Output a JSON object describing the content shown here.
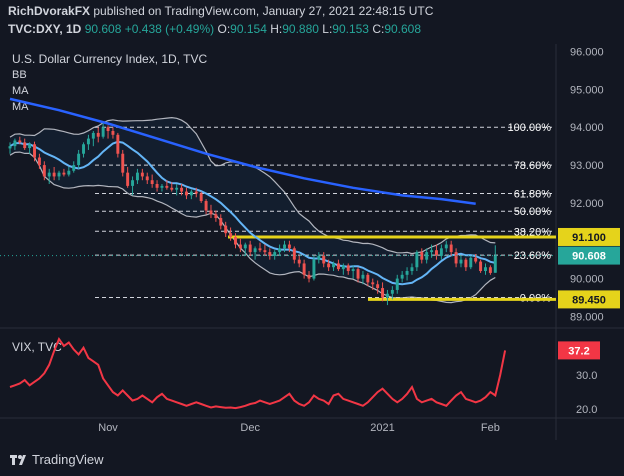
{
  "header": {
    "author": "RichDvorakFX",
    "published_text": "published on TradingView.com, January 27, 2021 22:48:15 UTC",
    "symbol": "TVC:DXY, 1D",
    "last": "90.608",
    "change": "+0.438 (+0.49%)",
    "o_label": "O:",
    "o_val": "90.154",
    "h_label": "H:",
    "h_val": "90.880",
    "l_label": "L:",
    "l_val": "90.153",
    "c_label": "C:",
    "c_val": "90.608"
  },
  "footer": {
    "brand": "TradingView"
  },
  "colors": {
    "background": "#131722",
    "up": "#26a69a",
    "down": "#ef5350",
    "ma_long": "#2962ff",
    "ma_short": "#64b5f6",
    "bollinger": "#b2b5be",
    "highlight": "#e5d31b",
    "vix": "#f23645"
  },
  "chart_data": [
    {
      "type": "candlestick",
      "title": "U.S. Dollar Currency Index, 1D, TVC",
      "indicator_labels": [
        "BB",
        "MA",
        "MA"
      ],
      "ylim": [
        88.8,
        96.2
      ],
      "y_ticks": [
        89.0,
        90.0,
        91.0,
        92.0,
        93.0,
        94.0,
        95.0,
        96.0
      ],
      "y_tick_labels": [
        "89.000",
        "90.000",
        "91.000",
        "92.000",
        "93.000",
        "94.000",
        "95.000",
        "96.000"
      ],
      "x_tick_labels": [
        {
          "label": "Nov",
          "index": 20
        },
        {
          "label": "Dec",
          "index": 49
        },
        {
          "label": "2021",
          "index": 76
        },
        {
          "label": "Feb",
          "index": 98
        }
      ],
      "x_count": 102,
      "candles": [
        [
          93.44,
          93.6,
          93.3,
          93.5
        ],
        [
          93.5,
          93.7,
          93.4,
          93.65
        ],
        [
          93.65,
          93.75,
          93.55,
          93.6
        ],
        [
          93.6,
          93.7,
          93.4,
          93.45
        ],
        [
          93.45,
          93.6,
          93.3,
          93.55
        ],
        [
          93.55,
          93.62,
          93.1,
          93.2
        ],
        [
          93.2,
          93.3,
          92.9,
          93.0
        ],
        [
          93.0,
          93.1,
          92.6,
          92.7
        ],
        [
          92.7,
          92.9,
          92.5,
          92.8
        ],
        [
          92.8,
          92.95,
          92.6,
          92.7
        ],
        [
          92.7,
          92.85,
          92.6,
          92.8
        ],
        [
          92.8,
          92.9,
          92.7,
          92.75
        ],
        [
          92.75,
          92.95,
          92.7,
          92.85
        ],
        [
          92.85,
          93.1,
          92.8,
          93.0
        ],
        [
          93.0,
          93.4,
          92.9,
          93.3
        ],
        [
          93.3,
          93.6,
          93.2,
          93.55
        ],
        [
          93.55,
          93.8,
          93.4,
          93.7
        ],
        [
          93.7,
          93.9,
          93.5,
          93.85
        ],
        [
          93.85,
          94.0,
          93.6,
          93.75
        ],
        [
          93.75,
          94.1,
          93.7,
          94.0
        ],
        [
          94.0,
          94.05,
          93.7,
          93.9
        ],
        [
          93.9,
          94.0,
          93.7,
          93.8
        ],
        [
          93.8,
          93.85,
          93.2,
          93.3
        ],
        [
          93.3,
          93.4,
          92.7,
          92.8
        ],
        [
          92.8,
          92.95,
          92.4,
          92.45
        ],
        [
          92.45,
          92.7,
          92.2,
          92.6
        ],
        [
          92.6,
          92.9,
          92.5,
          92.8
        ],
        [
          92.8,
          92.9,
          92.6,
          92.7
        ],
        [
          92.7,
          92.8,
          92.5,
          92.6
        ],
        [
          92.6,
          92.75,
          92.4,
          92.5
        ],
        [
          92.5,
          92.6,
          92.3,
          92.4
        ],
        [
          92.4,
          92.5,
          92.3,
          92.45
        ],
        [
          92.45,
          92.6,
          92.35,
          92.4
        ],
        [
          92.4,
          92.55,
          92.3,
          92.35
        ],
        [
          92.35,
          92.5,
          92.2,
          92.4
        ],
        [
          92.4,
          92.5,
          92.2,
          92.3
        ],
        [
          92.3,
          92.4,
          92.1,
          92.2
        ],
        [
          92.2,
          92.35,
          92.1,
          92.3
        ],
        [
          92.3,
          92.4,
          92.15,
          92.25
        ],
        [
          92.25,
          92.3,
          92.0,
          92.05
        ],
        [
          92.05,
          92.1,
          91.7,
          91.8
        ],
        [
          91.8,
          91.95,
          91.6,
          91.7
        ],
        [
          91.7,
          91.8,
          91.5,
          91.6
        ],
        [
          91.6,
          91.7,
          91.3,
          91.4
        ],
        [
          91.4,
          91.5,
          91.1,
          91.2
        ],
        [
          91.2,
          91.35,
          91.0,
          91.1
        ],
        [
          91.1,
          91.2,
          90.8,
          90.9
        ],
        [
          90.9,
          91.05,
          90.7,
          90.8
        ],
        [
          90.8,
          90.95,
          90.6,
          90.9
        ],
        [
          90.9,
          91.0,
          90.6,
          90.7
        ],
        [
          90.7,
          90.85,
          90.5,
          90.8
        ],
        [
          90.8,
          90.95,
          90.7,
          90.75
        ],
        [
          90.75,
          90.9,
          90.6,
          90.7
        ],
        [
          90.7,
          90.8,
          90.5,
          90.6
        ],
        [
          90.6,
          90.75,
          90.5,
          90.7
        ],
        [
          90.7,
          90.9,
          90.6,
          90.8
        ],
        [
          90.8,
          91.0,
          90.7,
          90.9
        ],
        [
          90.9,
          91.0,
          90.7,
          90.8
        ],
        [
          90.8,
          90.85,
          90.4,
          90.5
        ],
        [
          90.5,
          90.6,
          90.3,
          90.4
        ],
        [
          90.4,
          90.5,
          90.0,
          90.1
        ],
        [
          90.1,
          90.2,
          89.9,
          90.0
        ],
        [
          90.0,
          90.6,
          89.95,
          90.5
        ],
        [
          90.5,
          90.7,
          90.4,
          90.6
        ],
        [
          90.6,
          90.7,
          90.3,
          90.4
        ],
        [
          90.4,
          90.5,
          90.2,
          90.3
        ],
        [
          90.3,
          90.45,
          90.2,
          90.4
        ],
        [
          90.4,
          90.5,
          90.2,
          90.25
        ],
        [
          90.25,
          90.4,
          90.1,
          90.35
        ],
        [
          90.35,
          90.4,
          90.1,
          90.2
        ],
        [
          90.2,
          90.35,
          90.0,
          90.25
        ],
        [
          90.25,
          90.3,
          89.9,
          90.0
        ],
        [
          90.0,
          90.2,
          89.85,
          90.1
        ],
        [
          90.1,
          90.15,
          89.8,
          89.9
        ],
        [
          89.9,
          90.0,
          89.7,
          89.85
        ],
        [
          89.85,
          89.95,
          89.6,
          89.75
        ],
        [
          89.75,
          89.9,
          89.4,
          89.5
        ],
        [
          89.5,
          89.7,
          89.3,
          89.6
        ],
        [
          89.6,
          89.8,
          89.45,
          89.7
        ],
        [
          89.7,
          90.1,
          89.6,
          90.0
        ],
        [
          90.0,
          90.2,
          89.9,
          90.1
        ],
        [
          90.1,
          90.3,
          89.95,
          90.2
        ],
        [
          90.2,
          90.4,
          90.1,
          90.3
        ],
        [
          90.3,
          90.75,
          90.2,
          90.7
        ],
        [
          90.7,
          90.8,
          90.4,
          90.5
        ],
        [
          90.5,
          90.8,
          90.4,
          90.7
        ],
        [
          90.7,
          90.9,
          90.55,
          90.75
        ],
        [
          90.75,
          90.9,
          90.5,
          90.6
        ],
        [
          90.6,
          90.9,
          90.5,
          90.8
        ],
        [
          90.8,
          91.0,
          90.7,
          90.9
        ],
        [
          90.9,
          91.0,
          90.6,
          90.7
        ],
        [
          90.7,
          90.8,
          90.3,
          90.4
        ],
        [
          90.4,
          90.6,
          90.3,
          90.5
        ],
        [
          90.5,
          90.55,
          90.2,
          90.3
        ],
        [
          90.3,
          90.6,
          90.25,
          90.55
        ],
        [
          90.55,
          90.65,
          90.4,
          90.45
        ],
        [
          90.45,
          90.5,
          90.15,
          90.2
        ],
        [
          90.2,
          90.4,
          90.1,
          90.3
        ],
        [
          90.3,
          90.35,
          90.1,
          90.15
        ],
        [
          90.154,
          90.88,
          90.153,
          90.608
        ]
      ],
      "ma_long": [
        [
          0,
          94.75
        ],
        [
          10,
          94.45
        ],
        [
          20,
          94.1
        ],
        [
          30,
          93.7
        ],
        [
          40,
          93.3
        ],
        [
          50,
          92.95
        ],
        [
          60,
          92.65
        ],
        [
          70,
          92.4
        ],
        [
          80,
          92.2
        ],
        [
          88,
          92.1
        ],
        [
          95,
          91.98
        ]
      ],
      "fib_levels": [
        {
          "label": "100.00%",
          "value": 94.0
        },
        {
          "label": "78.60%",
          "value": 93.0
        },
        {
          "label": "61.80%",
          "value": 92.25
        },
        {
          "label": "50.00%",
          "value": 91.78
        },
        {
          "label": "38.20%",
          "value": 91.25
        },
        {
          "label": "23.60%",
          "value": 90.62
        },
        {
          "label": "0.00%",
          "value": 89.5
        }
      ],
      "highlight_levels": [
        {
          "label": "91.100",
          "value": 91.1
        },
        {
          "label": "89.450",
          "value": 89.45
        }
      ],
      "last_price_label": "90.608"
    },
    {
      "type": "line",
      "title": "VIX, TVC",
      "ylim": [
        18,
        42
      ],
      "y_ticks": [
        20.0,
        30.0
      ],
      "y_tick_labels": [
        "20.0",
        "30.0"
      ],
      "x_count": 102,
      "values": [
        26.5,
        27.0,
        27.5,
        28.5,
        27.0,
        28.0,
        29.0,
        30.5,
        33.0,
        37.0,
        40.5,
        38.5,
        39.5,
        37.5,
        36.0,
        38.0,
        35.0,
        34.0,
        33.0,
        29.0,
        27.0,
        25.0,
        24.0,
        25.5,
        24.0,
        22.5,
        23.0,
        24.0,
        23.0,
        22.0,
        23.5,
        24.5,
        23.0,
        22.5,
        22.0,
        21.5,
        21.0,
        21.5,
        22.0,
        21.5,
        21.0,
        20.5,
        20.8,
        20.6,
        20.4,
        20.5,
        20.3,
        20.6,
        21.0,
        21.5,
        21.8,
        22.5,
        22.0,
        21.5,
        22.0,
        22.5,
        23.5,
        24.5,
        22.5,
        21.5,
        21.0,
        22.0,
        24.0,
        23.0,
        22.5,
        21.5,
        24.0,
        24.5,
        23.0,
        22.5,
        22.0,
        21.5,
        21.0,
        22.0,
        23.5,
        25.0,
        26.0,
        24.5,
        23.0,
        22.0,
        23.0,
        24.5,
        26.5,
        23.0,
        22.0,
        22.5,
        23.0,
        22.0,
        21.5,
        21.0,
        22.5,
        24.0,
        25.0,
        23.0,
        22.5,
        22.0,
        22.5,
        23.5,
        25.0,
        24.0,
        30.0,
        37.2
      ],
      "last_value_label": "37.2"
    }
  ]
}
